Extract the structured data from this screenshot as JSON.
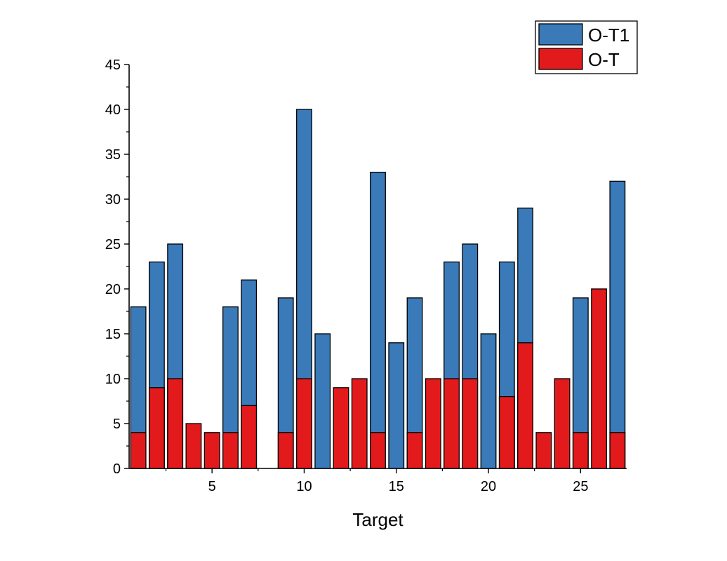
{
  "chart_data": {
    "type": "bar",
    "title": "",
    "xlabel": "Target",
    "ylabel": "",
    "xlim": [
      0.5,
      27.5
    ],
    "ylim": [
      0,
      45
    ],
    "x_ticks": [
      5,
      10,
      15,
      20,
      25
    ],
    "x_tick_labels": [
      "5",
      "10",
      "15",
      "20",
      "25"
    ],
    "y_ticks": [
      0,
      5,
      10,
      15,
      20,
      25,
      30,
      35,
      40,
      45
    ],
    "y_tick_labels": [
      "0",
      "5",
      "10",
      "15",
      "20",
      "25",
      "30",
      "35",
      "40",
      "45"
    ],
    "x": [
      1,
      2,
      3,
      4,
      5,
      6,
      7,
      8,
      9,
      10,
      11,
      12,
      13,
      14,
      15,
      16,
      17,
      18,
      19,
      20,
      21,
      22,
      23,
      24,
      25,
      26,
      27
    ],
    "series": [
      {
        "name": "O-T1",
        "color": "#3a7ab8",
        "values": [
          18,
          23,
          25,
          0,
          0,
          18,
          21,
          0,
          19,
          40,
          15,
          0,
          0,
          33,
          14,
          19,
          0,
          23,
          25,
          15,
          23,
          29,
          0,
          0,
          19,
          0,
          32
        ]
      },
      {
        "name": "O-T",
        "color": "#e31a1c",
        "values": [
          4,
          9,
          10,
          5,
          4,
          4,
          7,
          0,
          4,
          10,
          0,
          9,
          10,
          4,
          0,
          4,
          10,
          10,
          10,
          0,
          8,
          14,
          4,
          10,
          4,
          20,
          4
        ]
      }
    ],
    "legend": {
      "position": "top-right",
      "entries": [
        "O-T1",
        "O-T"
      ]
    },
    "grid": false
  }
}
